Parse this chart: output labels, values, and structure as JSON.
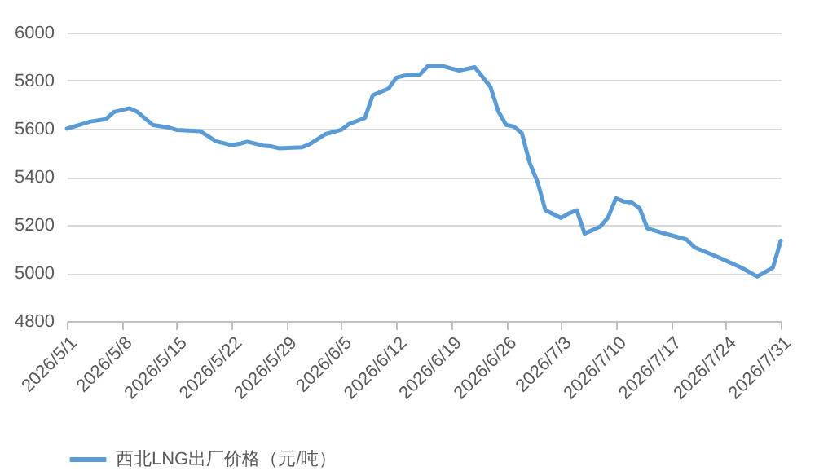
{
  "chart_data": {
    "type": "line",
    "legend": "bottom",
    "grid": "y",
    "line_style": "solid",
    "marker": "none",
    "xlim": [
      "2026-05-01",
      "2026-07-31"
    ],
    "xticks": [
      {
        "value": "2026-05-01",
        "label": "2026/5/1"
      },
      {
        "value": "2026-05-08",
        "label": "2026/5/8"
      },
      {
        "value": "2026-05-15",
        "label": "2026/5/15"
      },
      {
        "value": "2026-05-22",
        "label": "2026/5/22"
      },
      {
        "value": "2026-05-29",
        "label": "2026/5/29"
      },
      {
        "value": "2026-06-05",
        "label": "2026/6/5"
      },
      {
        "value": "2026-06-12",
        "label": "2026/6/12"
      },
      {
        "value": "2026-06-19",
        "label": "2026/6/19"
      },
      {
        "value": "2026-06-26",
        "label": "2026/6/26"
      },
      {
        "value": "2026-07-03",
        "label": "2026/7/3"
      },
      {
        "value": "2026-07-10",
        "label": "2026/7/10"
      },
      {
        "value": "2026-07-17",
        "label": "2026/7/17"
      },
      {
        "value": "2026-07-24",
        "label": "2026/7/24"
      },
      {
        "value": "2026-07-31",
        "label": "2026/7/31"
      }
    ],
    "ylim": [
      4800,
      6000
    ],
    "yticks": [
      4800,
      5000,
      5200,
      5400,
      5600,
      5800,
      6000
    ],
    "x": [
      "2026-05-01",
      "2026-05-03",
      "2026-05-04",
      "2026-05-06",
      "2026-05-07",
      "2026-05-09",
      "2026-05-10",
      "2026-05-12",
      "2026-05-14",
      "2026-05-15",
      "2026-05-18",
      "2026-05-20",
      "2026-05-22",
      "2026-05-23",
      "2026-05-24",
      "2026-05-26",
      "2026-05-27",
      "2026-05-28",
      "2026-05-31",
      "2026-06-01",
      "2026-06-03",
      "2026-06-04",
      "2026-06-05",
      "2026-06-06",
      "2026-06-08",
      "2026-06-09",
      "2026-06-11",
      "2026-06-12",
      "2026-06-13",
      "2026-06-15",
      "2026-06-16",
      "2026-06-18",
      "2026-06-20",
      "2026-06-22",
      "2026-06-24",
      "2026-06-25",
      "2026-06-26",
      "2026-06-27",
      "2026-06-28",
      "2026-06-29",
      "2026-06-30",
      "2026-07-01",
      "2026-07-03",
      "2026-07-04",
      "2026-07-05",
      "2026-07-06",
      "2026-07-08",
      "2026-07-09",
      "2026-07-10",
      "2026-07-11",
      "2026-07-12",
      "2026-07-13",
      "2026-07-14",
      "2026-07-16",
      "2026-07-19",
      "2026-07-20",
      "2026-07-23",
      "2026-07-26",
      "2026-07-28",
      "2026-07-30",
      "2026-07-31"
    ],
    "series": [
      {
        "name": "西北LNG出厂价格（元/吨）",
        "color": "#5b9bd5",
        "values": [
          5600,
          5620,
          5630,
          5640,
          5670,
          5685,
          5670,
          5615,
          5605,
          5595,
          5590,
          5548,
          5532,
          5537,
          5546,
          5530,
          5527,
          5519,
          5523,
          5537,
          5578,
          5587,
          5596,
          5620,
          5645,
          5740,
          5767,
          5812,
          5821,
          5825,
          5860,
          5860,
          5842,
          5856,
          5774,
          5672,
          5616,
          5609,
          5582,
          5458,
          5379,
          5261,
          5229,
          5248,
          5261,
          5164,
          5193,
          5232,
          5311,
          5297,
          5293,
          5270,
          5186,
          5166,
          5139,
          5107,
          5066,
          5022,
          4985,
          5022,
          5134
        ]
      }
    ]
  }
}
